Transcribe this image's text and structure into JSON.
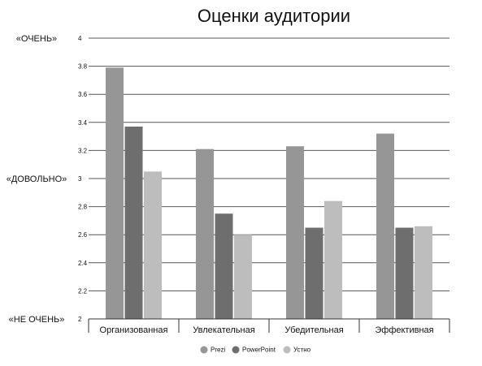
{
  "chart_data": {
    "type": "bar",
    "title": "Оценки аудитории",
    "categories": [
      "Организованная",
      "Увлекательная",
      "Убедительная",
      "Эффективная"
    ],
    "series": [
      {
        "name": "Prezi",
        "color": "#969696",
        "values": [
          3.79,
          3.21,
          3.23,
          3.32
        ]
      },
      {
        "name": "PowerPoint",
        "color": "#6e6e6e",
        "values": [
          3.37,
          2.75,
          2.65,
          2.65
        ]
      },
      {
        "name": "Устно",
        "color": "#bdbdbd",
        "values": [
          3.05,
          2.6,
          2.84,
          2.66
        ]
      }
    ],
    "ylim": [
      2,
      4
    ],
    "yticks": [
      "2",
      "2.2",
      "2.4",
      "2.6",
      "2.8",
      "3",
      "3.2",
      "3.4",
      "3.6",
      "3.8",
      "4"
    ],
    "side_labels": [
      {
        "text": "«ОЧЕНЬ»",
        "value": 4
      },
      {
        "text": "«ДОВОЛЬНО»",
        "value": 3
      },
      {
        "text": "«НЕ ОЧЕНЬ»",
        "value": 2
      }
    ],
    "grid": true,
    "legend": "bottom"
  }
}
